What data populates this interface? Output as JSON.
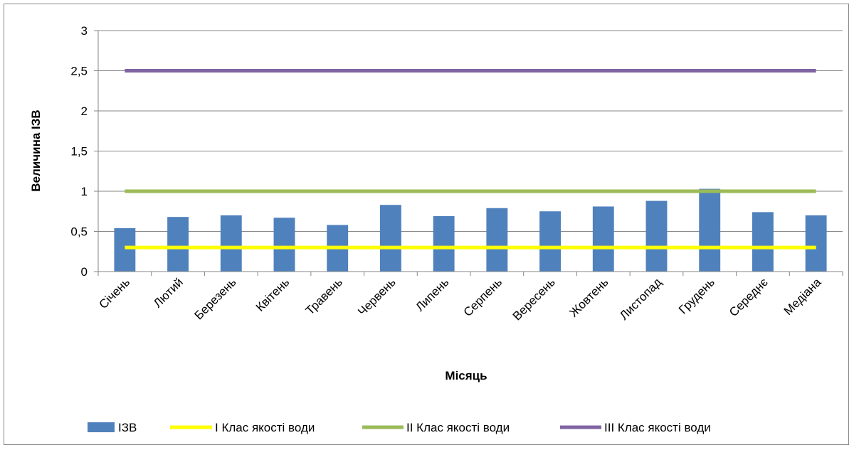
{
  "chart_data": {
    "type": "bar",
    "title": "",
    "xlabel": "Місяць",
    "ylabel": "Величина ІЗВ",
    "ylim": [
      0,
      3
    ],
    "yticks": [
      0,
      0.5,
      1,
      1.5,
      2,
      2.5,
      3
    ],
    "ytick_labels": [
      "0",
      "0,5",
      "1",
      "1,5",
      "2",
      "2,5",
      "3"
    ],
    "grid": true,
    "legend_position": "bottom",
    "categories": [
      "Січень",
      "Лютий",
      "Березень",
      "Квітень",
      "Травень",
      "Червень",
      "Липень",
      "Серпень",
      "Вересень",
      "Жовтень",
      "Листопад",
      "Грудень",
      "Середнє",
      "Медіана"
    ],
    "series": [
      {
        "name": "ІЗВ",
        "kind": "bar",
        "color": "#4f81bd",
        "values": [
          0.54,
          0.68,
          0.7,
          0.67,
          0.58,
          0.83,
          0.69,
          0.79,
          0.75,
          0.81,
          0.88,
          1.03,
          0.74,
          0.7
        ]
      },
      {
        "name": "І Клас якості води",
        "kind": "line",
        "color": "#ffff00",
        "values": [
          0.3,
          0.3,
          0.3,
          0.3,
          0.3,
          0.3,
          0.3,
          0.3,
          0.3,
          0.3,
          0.3,
          0.3,
          0.3,
          0.3
        ]
      },
      {
        "name": "ІІ Клас якості води",
        "kind": "line",
        "color": "#9bbb59",
        "values": [
          1,
          1,
          1,
          1,
          1,
          1,
          1,
          1,
          1,
          1,
          1,
          1,
          1,
          1
        ]
      },
      {
        "name": "ІІІ Клас якості води",
        "kind": "line",
        "color": "#8064a2",
        "values": [
          2.5,
          2.5,
          2.5,
          2.5,
          2.5,
          2.5,
          2.5,
          2.5,
          2.5,
          2.5,
          2.5,
          2.5,
          2.5,
          2.5
        ]
      }
    ]
  }
}
